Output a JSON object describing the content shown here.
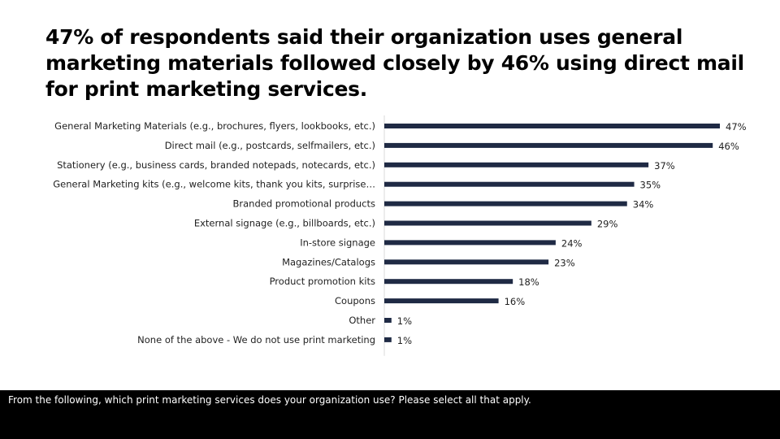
{
  "title": "47% of respondents said their organization uses general marketing materials followed closely by 46% using direct mail for print marketing services.",
  "question": "From the following, which print marketing services does your organization use? Please select all that apply.",
  "colors": {
    "bar": "#1f2a44",
    "footer": "#000000"
  },
  "chart_data": {
    "type": "bar",
    "orientation": "horizontal",
    "categories": [
      "General Marketing Materials (e.g., brochures, flyers, lookbooks, etc.)",
      "Direct mail (e.g., postcards, selfmailers, etc.)",
      "Stationery (e.g., business cards, branded notepads, notecards, etc.)",
      "General Marketing kits (e.g., welcome kits, thank you kits, surprise…",
      "Branded promotional products",
      "External signage (e.g., billboards, etc.)",
      "In-store signage",
      "Magazines/Catalogs",
      "Product promotion kits",
      "Coupons",
      "Other",
      "None of the above - We do not use print marketing"
    ],
    "values": [
      47,
      46,
      37,
      35,
      34,
      29,
      24,
      23,
      18,
      16,
      1,
      1
    ],
    "value_labels": [
      "47%",
      "46%",
      "37%",
      "35%",
      "34%",
      "29%",
      "24%",
      "23%",
      "18%",
      "16%",
      "1%",
      "1%"
    ],
    "xlim": [
      0,
      50
    ],
    "grid": false,
    "legend": "none"
  }
}
